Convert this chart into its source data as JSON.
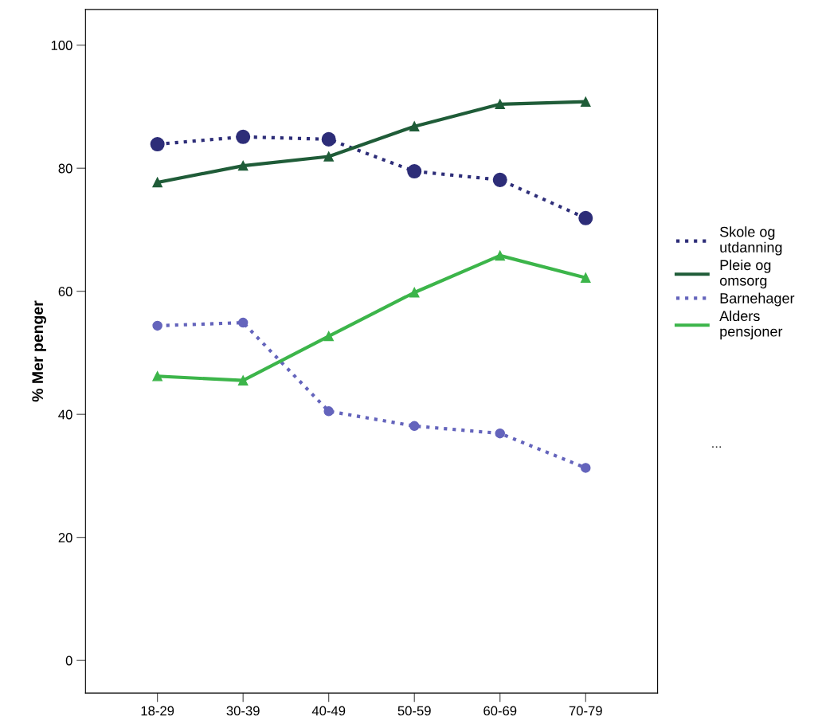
{
  "chart_data": {
    "type": "line",
    "ylabel": "% Mer penger",
    "categories": [
      "18-29",
      "30-39",
      "40-49",
      "50-59",
      "60-69",
      "70-79"
    ],
    "series": [
      {
        "name": "Skole og utdanning",
        "color": "#2d2d78",
        "marker": "circle",
        "line_style": "dotted",
        "values": [
          83.9,
          85.1,
          84.7,
          79.5,
          78.1,
          71.9
        ]
      },
      {
        "name": "Pleie og omsorg",
        "color": "#1f5c38",
        "marker": "triangle",
        "line_style": "solid",
        "values": [
          77.7,
          80.4,
          81.9,
          86.8,
          90.4,
          90.8
        ]
      },
      {
        "name": "Barnehager",
        "color": "#6464bc",
        "marker": "circle",
        "line_style": "dotted",
        "values": [
          54.4,
          54.9,
          40.5,
          38.1,
          36.9,
          31.3
        ]
      },
      {
        "name": "Alders pensjoner",
        "color": "#3cb54a",
        "marker": "triangle",
        "line_style": "solid",
        "values": [
          46.2,
          45.5,
          52.7,
          59.8,
          65.8,
          62.2
        ]
      }
    ],
    "ylim": [
      -5.3,
      105.8
    ],
    "yticks": [
      0,
      20,
      40,
      60,
      80,
      100
    ],
    "grid": false,
    "legend": "right",
    "annotations": [
      "..."
    ]
  }
}
